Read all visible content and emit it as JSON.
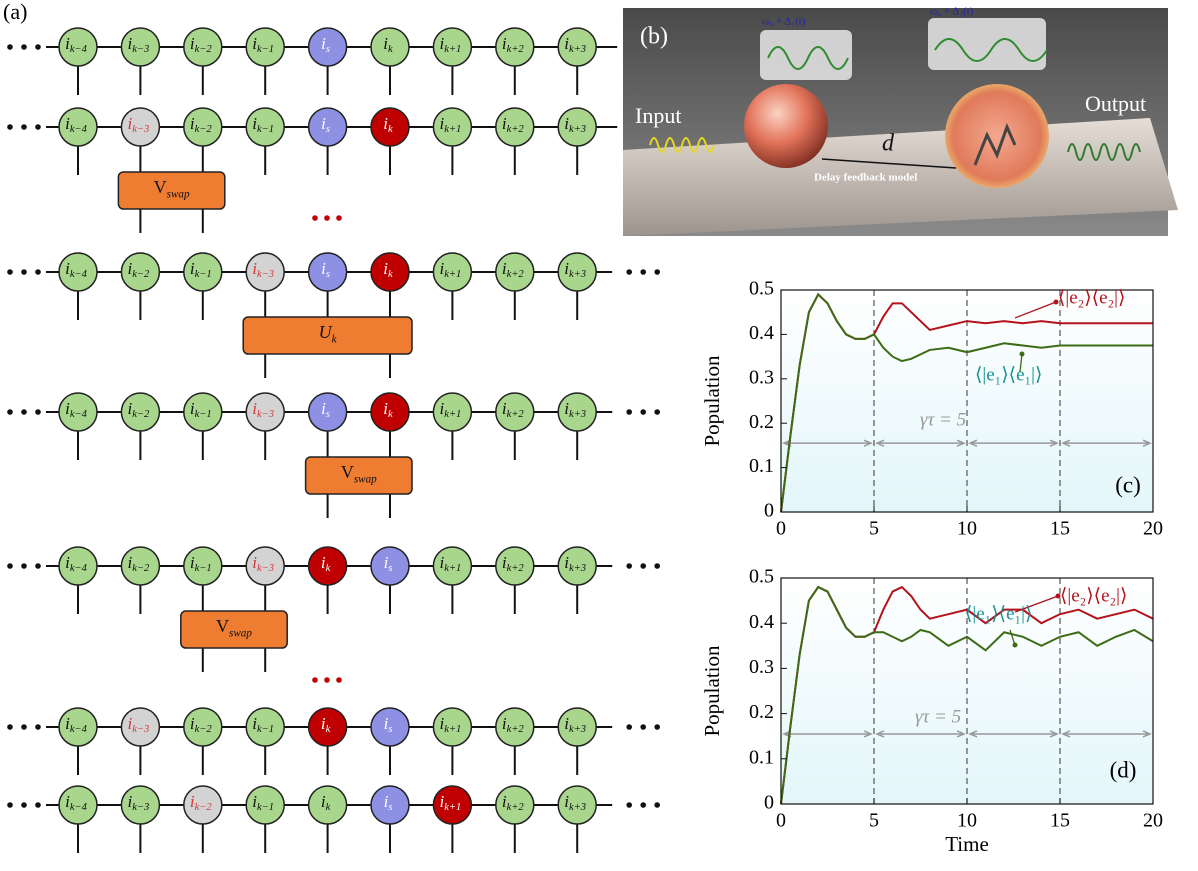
{
  "diagram": {
    "label": "(a)",
    "node_symbol": "i",
    "rows": [
      {
        "right_dots": false,
        "nodes": [
          {
            "sub": "k−4",
            "fill": "green"
          },
          {
            "sub": "k−3",
            "fill": "green"
          },
          {
            "sub": "k−2",
            "fill": "green"
          },
          {
            "sub": "k−1",
            "fill": "green"
          },
          {
            "sub": "s",
            "fill": "blue"
          },
          {
            "sub": "k",
            "fill": "green"
          },
          {
            "sub": "k+1",
            "fill": "green"
          },
          {
            "sub": "k+2",
            "fill": "green"
          },
          {
            "sub": "k+3",
            "fill": "green"
          }
        ]
      },
      {
        "right_dots": false,
        "nodes": [
          {
            "sub": "k−4",
            "fill": "green"
          },
          {
            "sub": "k−3",
            "fill": "gray"
          },
          {
            "sub": "k−2",
            "fill": "green"
          },
          {
            "sub": "k−1",
            "fill": "green"
          },
          {
            "sub": "s",
            "fill": "blue"
          },
          {
            "sub": "k",
            "fill": "red"
          },
          {
            "sub": "k+1",
            "fill": "green"
          },
          {
            "sub": "k+2",
            "fill": "green"
          },
          {
            "sub": "k+3",
            "fill": "green"
          }
        ],
        "box": {
          "sym": "V",
          "sub": "swap",
          "spans": [
            1,
            2
          ]
        }
      },
      {
        "right_dots": true,
        "nodes": [
          {
            "sub": "k−4",
            "fill": "green"
          },
          {
            "sub": "k−2",
            "fill": "green"
          },
          {
            "sub": "k−1",
            "fill": "green"
          },
          {
            "sub": "k−3",
            "fill": "gray"
          },
          {
            "sub": "s",
            "fill": "blue"
          },
          {
            "sub": "k",
            "fill": "red"
          },
          {
            "sub": "k+1",
            "fill": "green"
          },
          {
            "sub": "k+2",
            "fill": "green"
          },
          {
            "sub": "k+3",
            "fill": "green"
          }
        ],
        "box": {
          "sym": "U",
          "sub": "k",
          "spans": [
            3,
            5
          ]
        }
      },
      {
        "right_dots": true,
        "nodes": [
          {
            "sub": "k−4",
            "fill": "green"
          },
          {
            "sub": "k−2",
            "fill": "green"
          },
          {
            "sub": "k−1",
            "fill": "green"
          },
          {
            "sub": "k−3",
            "fill": "gray"
          },
          {
            "sub": "s",
            "fill": "blue"
          },
          {
            "sub": "k",
            "fill": "red"
          },
          {
            "sub": "k+1",
            "fill": "green"
          },
          {
            "sub": "k+2",
            "fill": "green"
          },
          {
            "sub": "k+3",
            "fill": "green"
          }
        ],
        "box": {
          "sym": "V",
          "sub": "swap",
          "spans": [
            4,
            5
          ]
        }
      },
      {
        "right_dots": true,
        "nodes": [
          {
            "sub": "k−4",
            "fill": "green"
          },
          {
            "sub": "k−2",
            "fill": "green"
          },
          {
            "sub": "k−1",
            "fill": "green"
          },
          {
            "sub": "k−3",
            "fill": "gray"
          },
          {
            "sub": "k",
            "fill": "red"
          },
          {
            "sub": "s",
            "fill": "blue"
          },
          {
            "sub": "k+1",
            "fill": "green"
          },
          {
            "sub": "k+2",
            "fill": "green"
          },
          {
            "sub": "k+3",
            "fill": "green"
          }
        ],
        "box": {
          "sym": "V",
          "sub": "swap",
          "spans": [
            2,
            3
          ]
        }
      },
      {
        "right_dots": true,
        "nodes": [
          {
            "sub": "k−4",
            "fill": "green"
          },
          {
            "sub": "k−3",
            "fill": "gray"
          },
          {
            "sub": "k−2",
            "fill": "green"
          },
          {
            "sub": "k−1",
            "fill": "green"
          },
          {
            "sub": "k",
            "fill": "red"
          },
          {
            "sub": "s",
            "fill": "blue"
          },
          {
            "sub": "k+1",
            "fill": "green"
          },
          {
            "sub": "k+2",
            "fill": "green"
          },
          {
            "sub": "k+3",
            "fill": "green"
          }
        ]
      },
      {
        "right_dots": true,
        "nodes": [
          {
            "sub": "k−4",
            "fill": "green"
          },
          {
            "sub": "k−3",
            "fill": "green"
          },
          {
            "sub": "k−2",
            "fill": "gray"
          },
          {
            "sub": "k−1",
            "fill": "green"
          },
          {
            "sub": "k",
            "fill": "green"
          },
          {
            "sub": "s",
            "fill": "blue"
          },
          {
            "sub": "k+1",
            "fill": "red"
          },
          {
            "sub": "k+2",
            "fill": "green"
          },
          {
            "sub": "k+3",
            "fill": "green"
          }
        ]
      }
    ]
  },
  "illustration": {
    "label": "(b)",
    "input": "Input",
    "output": "Output",
    "distance": "d",
    "caption": "Delay feedback model",
    "freq_1": "ω₀ + Δ₁(t)",
    "freq_2": "ω₀ + Δ₂(t)"
  },
  "chart_data": [
    {
      "type": "line",
      "panel_label": "(c)",
      "y_label": "Population",
      "x": [
        0,
        0.5,
        1,
        1.5,
        2,
        2.5,
        3,
        3.5,
        4,
        4.5,
        5,
        5.5,
        6,
        6.5,
        7,
        7.5,
        8,
        9,
        10,
        11,
        12,
        13,
        14,
        15,
        16,
        17,
        18,
        19,
        20
      ],
      "series": [
        {
          "name": "⟨|e₂⟩⟨e₂|⟩",
          "color": "#b5121b",
          "values": [
            0,
            0.17,
            0.33,
            0.45,
            0.49,
            0.47,
            0.43,
            0.4,
            0.39,
            0.39,
            0.4,
            0.44,
            0.47,
            0.47,
            0.45,
            0.43,
            0.41,
            0.42,
            0.43,
            0.425,
            0.43,
            0.425,
            0.43,
            0.425,
            0.425,
            0.425,
            0.425,
            0.425,
            0.425
          ]
        },
        {
          "name": "⟨|e₁⟩⟨e₁|⟩",
          "color": "#3d6b16",
          "values": [
            0,
            0.17,
            0.33,
            0.45,
            0.49,
            0.47,
            0.43,
            0.4,
            0.39,
            0.39,
            0.4,
            0.37,
            0.35,
            0.34,
            0.345,
            0.355,
            0.365,
            0.37,
            0.36,
            0.37,
            0.38,
            0.375,
            0.37,
            0.375,
            0.375,
            0.375,
            0.375,
            0.375,
            0.375
          ]
        }
      ],
      "xlim": [
        0,
        20
      ],
      "ylim": [
        0,
        0.5
      ],
      "xticks": [
        0,
        5,
        10,
        15,
        20
      ],
      "yticks": [
        0,
        0.1,
        0.2,
        0.3,
        0.4,
        0.5
      ],
      "vlines": [
        5,
        10,
        15
      ],
      "delay_label": "γτ = 5"
    },
    {
      "type": "line",
      "panel_label": "(d)",
      "y_label": "Population",
      "x_label": "Time",
      "x": [
        0,
        0.5,
        1,
        1.5,
        2,
        2.5,
        3,
        3.5,
        4,
        4.5,
        5,
        5.5,
        6,
        6.5,
        7,
        7.5,
        8,
        9,
        10,
        11,
        12,
        13,
        14,
        15,
        16,
        17,
        18,
        19,
        20
      ],
      "series": [
        {
          "name": "⟨|e₂⟩⟨e₂|⟩",
          "color": "#b5121b",
          "values": [
            0,
            0.17,
            0.33,
            0.45,
            0.48,
            0.47,
            0.43,
            0.39,
            0.37,
            0.37,
            0.38,
            0.43,
            0.47,
            0.48,
            0.46,
            0.43,
            0.41,
            0.42,
            0.43,
            0.4,
            0.43,
            0.43,
            0.4,
            0.42,
            0.43,
            0.41,
            0.42,
            0.43,
            0.41
          ]
        },
        {
          "name": "⟨|e₁⟩⟨e₁|⟩",
          "color": "#3d6b16",
          "values": [
            0,
            0.17,
            0.33,
            0.45,
            0.48,
            0.47,
            0.43,
            0.39,
            0.37,
            0.37,
            0.38,
            0.38,
            0.37,
            0.36,
            0.37,
            0.385,
            0.38,
            0.35,
            0.37,
            0.34,
            0.38,
            0.37,
            0.35,
            0.37,
            0.38,
            0.35,
            0.37,
            0.385,
            0.36
          ]
        }
      ],
      "xlim": [
        0,
        20
      ],
      "ylim": [
        0,
        0.5
      ],
      "xticks": [
        0,
        5,
        10,
        15,
        20
      ],
      "yticks": [
        0,
        0.1,
        0.2,
        0.3,
        0.4,
        0.5
      ],
      "vlines": [
        5,
        10,
        15
      ],
      "delay_label": "γτ = 5"
    }
  ]
}
